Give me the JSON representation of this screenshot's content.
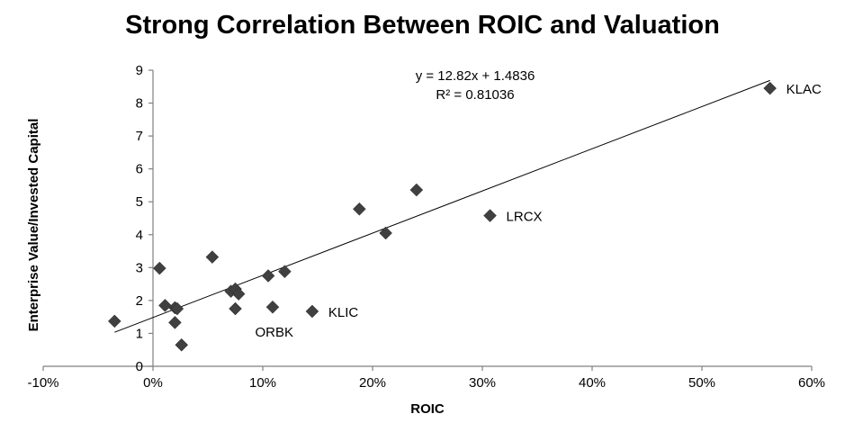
{
  "chart_data": {
    "type": "scatter",
    "title": "Strong Correlation Between ROIC and Valuation",
    "xlabel": "ROIC",
    "ylabel": "Enterprise Value/Invested Capital",
    "xlim": [
      -10,
      60
    ],
    "ylim": [
      0,
      9
    ],
    "x_ticks": [
      "-10%",
      "0%",
      "10%",
      "20%",
      "30%",
      "40%",
      "50%",
      "60%"
    ],
    "y_ticks": [
      "0",
      "1",
      "2",
      "3",
      "4",
      "5",
      "6",
      "7",
      "8",
      "9"
    ],
    "grid": false,
    "marker_color": "#404040",
    "trendline": {
      "equation": "y = 12.82x + 1.4836",
      "r_squared": "R² = 0.81036",
      "slope": 12.82,
      "intercept": 1.4836,
      "x_range": [
        -3.5,
        56.2
      ]
    },
    "points": [
      {
        "x": -3.5,
        "y": 1.37
      },
      {
        "x": 0.6,
        "y": 2.98
      },
      {
        "x": 1.1,
        "y": 1.85
      },
      {
        "x": 2.0,
        "y": 1.78
      },
      {
        "x": 2.2,
        "y": 1.75
      },
      {
        "x": 2.0,
        "y": 1.33
      },
      {
        "x": 2.6,
        "y": 0.65
      },
      {
        "x": 5.4,
        "y": 3.32
      },
      {
        "x": 7.1,
        "y": 2.28
      },
      {
        "x": 7.5,
        "y": 2.35
      },
      {
        "x": 7.8,
        "y": 2.2
      },
      {
        "x": 7.5,
        "y": 1.75
      },
      {
        "x": 10.5,
        "y": 2.75
      },
      {
        "x": 10.9,
        "y": 1.8
      },
      {
        "x": 12.0,
        "y": 2.88
      },
      {
        "x": 14.5,
        "y": 1.67,
        "label": "KLIC"
      },
      {
        "x": 18.8,
        "y": 4.78
      },
      {
        "x": 21.2,
        "y": 4.05
      },
      {
        "x": 24.0,
        "y": 5.36
      },
      {
        "x": 30.7,
        "y": 4.58,
        "label": "LRCX"
      },
      {
        "x": 56.2,
        "y": 8.45,
        "label": "KLAC"
      }
    ],
    "annotations": [
      {
        "text": "KLAC",
        "x": 56.2,
        "y": 8.45,
        "dx": 18,
        "dy": 6
      },
      {
        "text": "LRCX",
        "x": 30.7,
        "y": 4.58,
        "dx": 18,
        "dy": 6
      },
      {
        "text": "KLIC",
        "x": 14.5,
        "y": 1.67,
        "dx": 18,
        "dy": 6
      },
      {
        "text": "ORBK",
        "x": 7.5,
        "y": 1.75,
        "dx": 22,
        "dy": 31
      }
    ]
  }
}
